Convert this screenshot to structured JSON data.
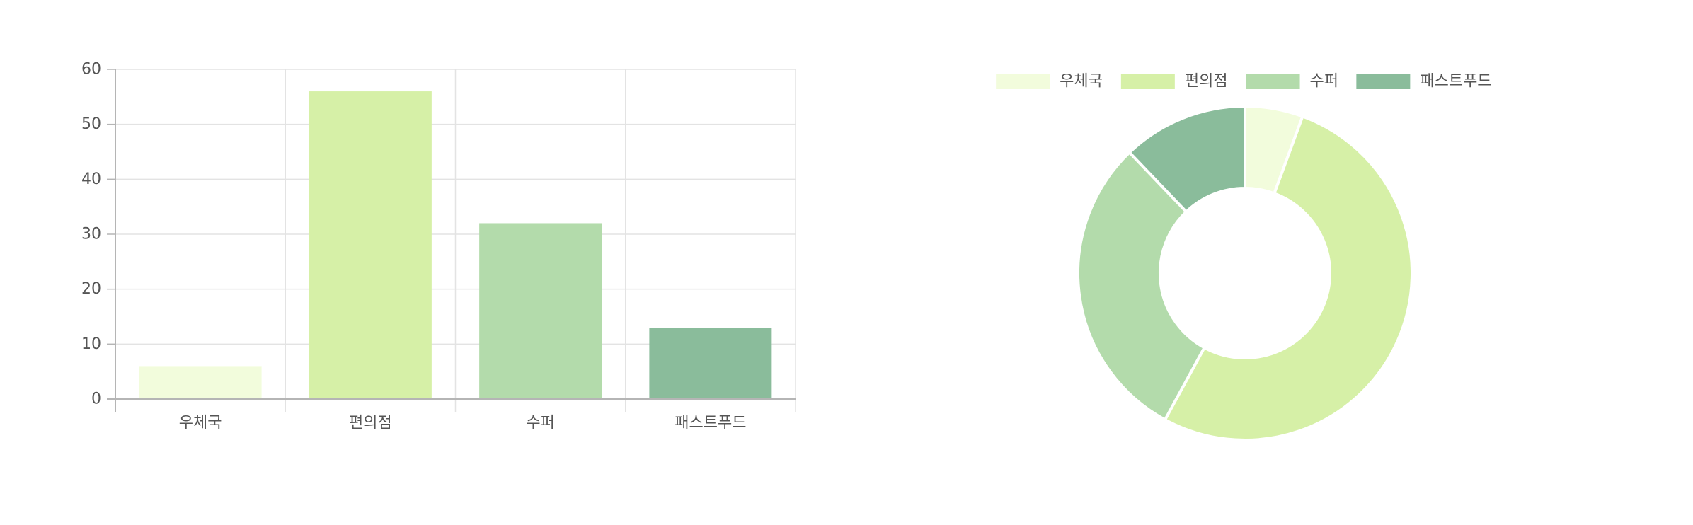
{
  "colors": {
    "post_office": "#f2fcdc",
    "convenience_store": "#d6f0a7",
    "supermarket": "#b3dbab",
    "fast_food": "#8abc9b",
    "grid": "#e3e3e3",
    "axis": "#b5b5b5",
    "text": "#555555"
  },
  "chart_data": [
    {
      "type": "bar",
      "categories": [
        "우체국",
        "편의점",
        "수퍼",
        "패스트푸드"
      ],
      "values": [
        6,
        56,
        32,
        13
      ],
      "ylim": [
        0,
        60
      ],
      "yticks": [
        0,
        10,
        20,
        30,
        40,
        50,
        60
      ],
      "grid": true,
      "legend": "none"
    },
    {
      "type": "pie",
      "variant": "doughnut",
      "categories": [
        "우체국",
        "편의점",
        "수퍼",
        "패스트푸드"
      ],
      "values": [
        6,
        56,
        32,
        13
      ],
      "legend": "top"
    }
  ]
}
